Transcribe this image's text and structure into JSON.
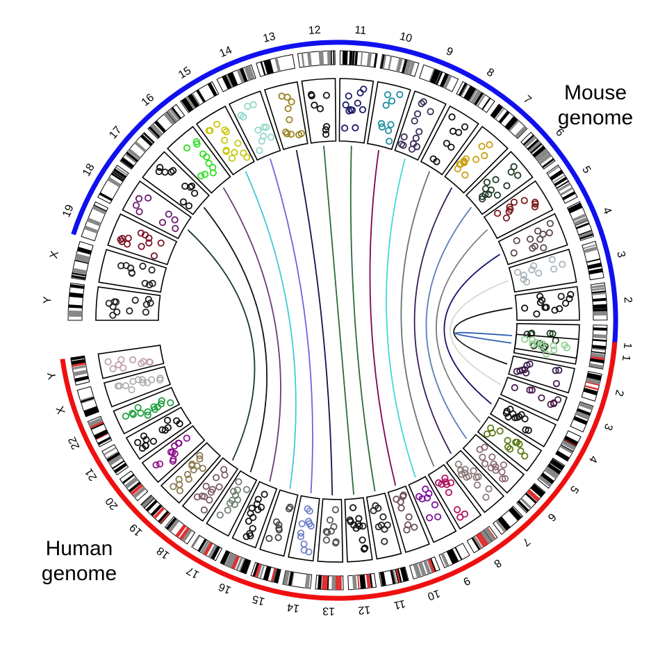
{
  "genomes": {
    "mouse": {
      "title_line1": "Mouse",
      "title_line2": "genome",
      "ring_color": "#1010ee",
      "chromosomes": [
        {
          "name": "1",
          "color": "#1f3a1f"
        },
        {
          "name": "2",
          "color": "#111111"
        },
        {
          "name": "3",
          "color": "#a8b4bc"
        },
        {
          "name": "4",
          "color": "#5a4650"
        },
        {
          "name": "5",
          "color": "#7a1a1a"
        },
        {
          "name": "6",
          "color": "#1e3a26"
        },
        {
          "name": "7",
          "color": "#c8a010"
        },
        {
          "name": "8",
          "color": "#111111"
        },
        {
          "name": "9",
          "color": "#3a2a5a"
        },
        {
          "name": "10",
          "color": "#1a8aa0"
        },
        {
          "name": "11",
          "color": "#1a1a6a"
        },
        {
          "name": "12",
          "color": "#111111"
        },
        {
          "name": "13",
          "color": "#9a8020"
        },
        {
          "name": "14",
          "color": "#90d8c8"
        },
        {
          "name": "15",
          "color": "#c8c810"
        },
        {
          "name": "16",
          "color": "#30e020"
        },
        {
          "name": "17",
          "color": "#111111"
        },
        {
          "name": "18",
          "color": "#6a1a6a"
        },
        {
          "name": "19",
          "color": "#7a1020"
        },
        {
          "name": "X",
          "color": "#222222"
        },
        {
          "name": "Y",
          "color": "#222222"
        }
      ]
    },
    "human": {
      "title_line1": "Human",
      "title_line2": "genome",
      "ring_color": "#ee1010",
      "chromosomes": [
        {
          "name": "1",
          "color": "#90d090"
        },
        {
          "name": "2",
          "color": "#3a1a4a"
        },
        {
          "name": "3",
          "color": "#4a1a4a"
        },
        {
          "name": "4",
          "color": "#111111"
        },
        {
          "name": "5",
          "color": "#5a7a10"
        },
        {
          "name": "6",
          "color": "#8a6a70"
        },
        {
          "name": "7",
          "color": "#8a7a78"
        },
        {
          "name": "8",
          "color": "#b01060"
        },
        {
          "name": "9",
          "color": "#7a10a0"
        },
        {
          "name": "10",
          "color": "#6a4a5a"
        },
        {
          "name": "11",
          "color": "#222222"
        },
        {
          "name": "12",
          "color": "#111111"
        },
        {
          "name": "13",
          "color": "#555555"
        },
        {
          "name": "14",
          "color": "#7080c8"
        },
        {
          "name": "15",
          "color": "#444444"
        },
        {
          "name": "16",
          "color": "#111111"
        },
        {
          "name": "17",
          "color": "#708070"
        },
        {
          "name": "18",
          "color": "#7a5a60"
        },
        {
          "name": "19",
          "color": "#8a7a50"
        },
        {
          "name": "20",
          "color": "#8a108a"
        },
        {
          "name": "21",
          "color": "#111111"
        },
        {
          "name": "22",
          "color": "#20a040"
        },
        {
          "name": "X",
          "color": "#b0b0b0"
        },
        {
          "name": "Y",
          "color": "#c0a0b0"
        }
      ]
    }
  },
  "links": [
    {
      "color": "#3060b0"
    },
    {
      "color": "#111111"
    },
    {
      "color": "#d8d8d0"
    },
    {
      "color": "#10106a"
    },
    {
      "color": "#808080"
    },
    {
      "color": "#5a80b8"
    },
    {
      "color": "#3a1a5a"
    },
    {
      "color": "#707070"
    },
    {
      "color": "#40d8d8"
    },
    {
      "color": "#800050"
    },
    {
      "color": "#2a6a3a"
    },
    {
      "color": "#2a6a3a"
    },
    {
      "color": "#10104a"
    },
    {
      "color": "#7060e0"
    },
    {
      "color": "#40c8d8"
    },
    {
      "color": "#6a3a7a"
    },
    {
      "color": "#111111"
    },
    {
      "color": "#1a3a2a"
    }
  ]
}
